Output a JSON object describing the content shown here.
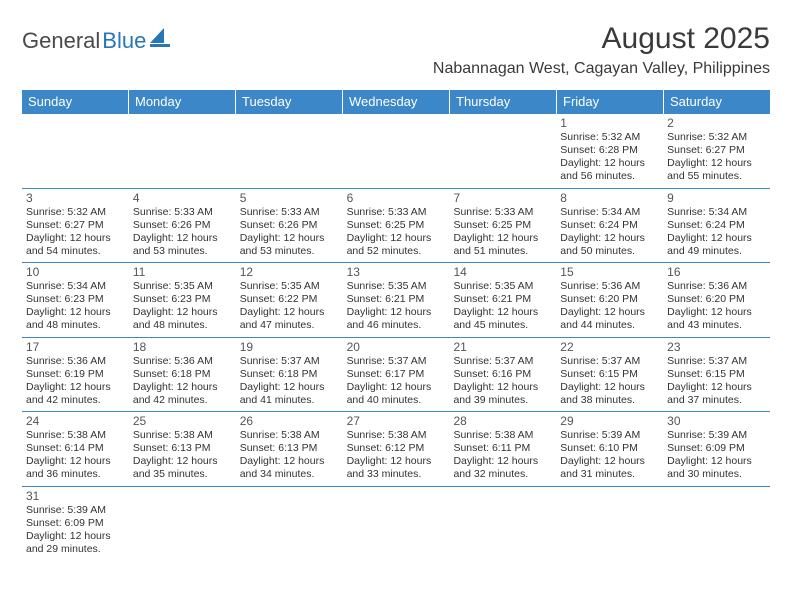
{
  "logo": {
    "text_a": "General",
    "text_b": "Blue"
  },
  "title": {
    "month": "August 2025",
    "location": "Nabannagan West, Cagayan Valley, Philippines"
  },
  "colors": {
    "header_bg": "#3b87c8",
    "header_fg": "#ffffff",
    "rule": "#3b87c8",
    "text": "#333333",
    "title": "#3a3a3a"
  },
  "day_labels": [
    "Sunday",
    "Monday",
    "Tuesday",
    "Wednesday",
    "Thursday",
    "Friday",
    "Saturday"
  ],
  "weeks": [
    [
      null,
      null,
      null,
      null,
      null,
      {
        "n": "1",
        "sr": "5:32 AM",
        "ss": "6:28 PM",
        "dl": "12 hours and 56 minutes."
      },
      {
        "n": "2",
        "sr": "5:32 AM",
        "ss": "6:27 PM",
        "dl": "12 hours and 55 minutes."
      }
    ],
    [
      {
        "n": "3",
        "sr": "5:32 AM",
        "ss": "6:27 PM",
        "dl": "12 hours and 54 minutes."
      },
      {
        "n": "4",
        "sr": "5:33 AM",
        "ss": "6:26 PM",
        "dl": "12 hours and 53 minutes."
      },
      {
        "n": "5",
        "sr": "5:33 AM",
        "ss": "6:26 PM",
        "dl": "12 hours and 53 minutes."
      },
      {
        "n": "6",
        "sr": "5:33 AM",
        "ss": "6:25 PM",
        "dl": "12 hours and 52 minutes."
      },
      {
        "n": "7",
        "sr": "5:33 AM",
        "ss": "6:25 PM",
        "dl": "12 hours and 51 minutes."
      },
      {
        "n": "8",
        "sr": "5:34 AM",
        "ss": "6:24 PM",
        "dl": "12 hours and 50 minutes."
      },
      {
        "n": "9",
        "sr": "5:34 AM",
        "ss": "6:24 PM",
        "dl": "12 hours and 49 minutes."
      }
    ],
    [
      {
        "n": "10",
        "sr": "5:34 AM",
        "ss": "6:23 PM",
        "dl": "12 hours and 48 minutes."
      },
      {
        "n": "11",
        "sr": "5:35 AM",
        "ss": "6:23 PM",
        "dl": "12 hours and 48 minutes."
      },
      {
        "n": "12",
        "sr": "5:35 AM",
        "ss": "6:22 PM",
        "dl": "12 hours and 47 minutes."
      },
      {
        "n": "13",
        "sr": "5:35 AM",
        "ss": "6:21 PM",
        "dl": "12 hours and 46 minutes."
      },
      {
        "n": "14",
        "sr": "5:35 AM",
        "ss": "6:21 PM",
        "dl": "12 hours and 45 minutes."
      },
      {
        "n": "15",
        "sr": "5:36 AM",
        "ss": "6:20 PM",
        "dl": "12 hours and 44 minutes."
      },
      {
        "n": "16",
        "sr": "5:36 AM",
        "ss": "6:20 PM",
        "dl": "12 hours and 43 minutes."
      }
    ],
    [
      {
        "n": "17",
        "sr": "5:36 AM",
        "ss": "6:19 PM",
        "dl": "12 hours and 42 minutes."
      },
      {
        "n": "18",
        "sr": "5:36 AM",
        "ss": "6:18 PM",
        "dl": "12 hours and 42 minutes."
      },
      {
        "n": "19",
        "sr": "5:37 AM",
        "ss": "6:18 PM",
        "dl": "12 hours and 41 minutes."
      },
      {
        "n": "20",
        "sr": "5:37 AM",
        "ss": "6:17 PM",
        "dl": "12 hours and 40 minutes."
      },
      {
        "n": "21",
        "sr": "5:37 AM",
        "ss": "6:16 PM",
        "dl": "12 hours and 39 minutes."
      },
      {
        "n": "22",
        "sr": "5:37 AM",
        "ss": "6:15 PM",
        "dl": "12 hours and 38 minutes."
      },
      {
        "n": "23",
        "sr": "5:37 AM",
        "ss": "6:15 PM",
        "dl": "12 hours and 37 minutes."
      }
    ],
    [
      {
        "n": "24",
        "sr": "5:38 AM",
        "ss": "6:14 PM",
        "dl": "12 hours and 36 minutes."
      },
      {
        "n": "25",
        "sr": "5:38 AM",
        "ss": "6:13 PM",
        "dl": "12 hours and 35 minutes."
      },
      {
        "n": "26",
        "sr": "5:38 AM",
        "ss": "6:13 PM",
        "dl": "12 hours and 34 minutes."
      },
      {
        "n": "27",
        "sr": "5:38 AM",
        "ss": "6:12 PM",
        "dl": "12 hours and 33 minutes."
      },
      {
        "n": "28",
        "sr": "5:38 AM",
        "ss": "6:11 PM",
        "dl": "12 hours and 32 minutes."
      },
      {
        "n": "29",
        "sr": "5:39 AM",
        "ss": "6:10 PM",
        "dl": "12 hours and 31 minutes."
      },
      {
        "n": "30",
        "sr": "5:39 AM",
        "ss": "6:09 PM",
        "dl": "12 hours and 30 minutes."
      }
    ],
    [
      {
        "n": "31",
        "sr": "5:39 AM",
        "ss": "6:09 PM",
        "dl": "12 hours and 29 minutes."
      },
      null,
      null,
      null,
      null,
      null,
      null
    ]
  ],
  "labels": {
    "sunrise": "Sunrise: ",
    "sunset": "Sunset: ",
    "daylight": "Daylight: "
  }
}
